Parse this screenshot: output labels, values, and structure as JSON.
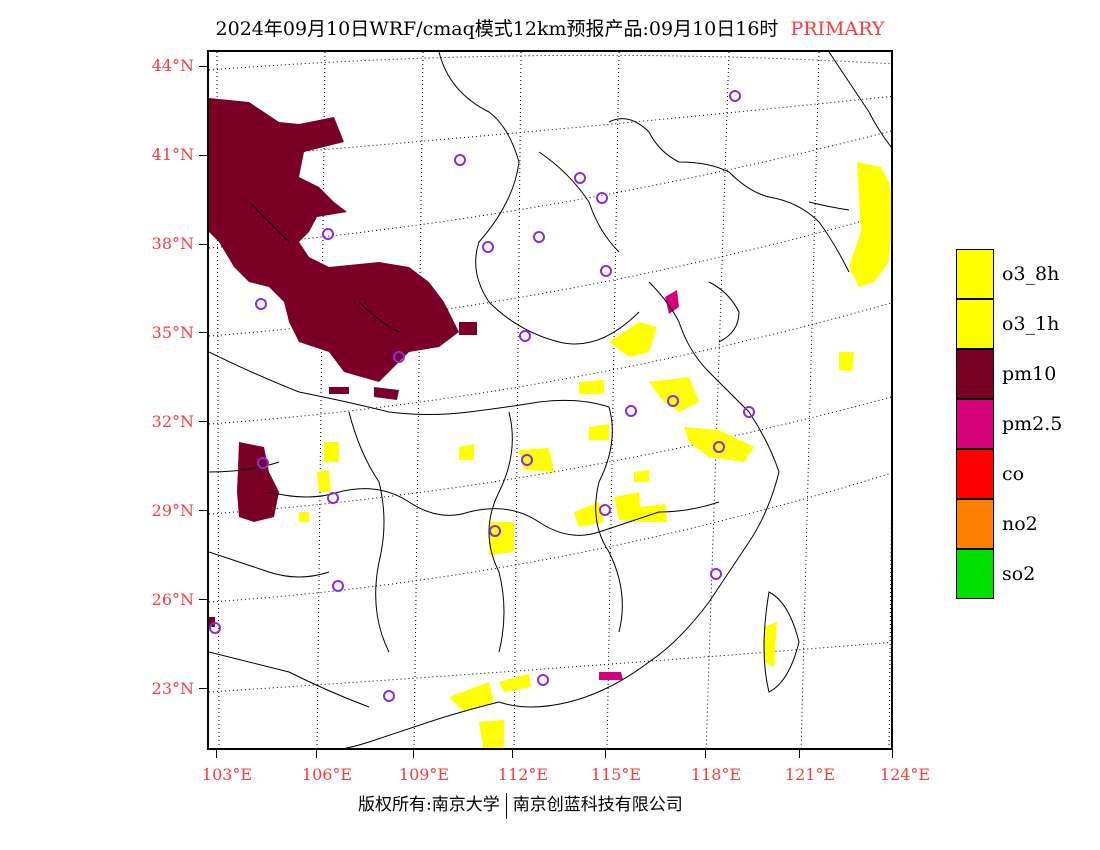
{
  "title": {
    "main": "2024年09月10日WRF/cmaq模式12km预报产品:09月10日16时",
    "tag": "PRIMARY"
  },
  "axes": {
    "lat_labels": [
      "44°N",
      "41°N",
      "38°N",
      "35°N",
      "32°N",
      "29°N",
      "26°N",
      "23°N"
    ],
    "lon_labels": [
      "103°E",
      "106°E",
      "109°E",
      "112°E",
      "115°E",
      "118°E",
      "121°E",
      "124°E"
    ]
  },
  "legend": {
    "items": [
      {
        "label": "o3_8h",
        "color": "#ffff00"
      },
      {
        "label": "o3_1h",
        "color": "#ffff00"
      },
      {
        "label": "pm10",
        "color": "#7a0028"
      },
      {
        "label": "pm2.5",
        "color": "#d4007a"
      },
      {
        "label": "co",
        "color": "#ff0000"
      },
      {
        "label": "no2",
        "color": "#ff7f00"
      },
      {
        "label": "so2",
        "color": "#00e000"
      }
    ]
  },
  "footer": {
    "left": "版权所有:南京大学",
    "right": "南京创蓝科技有限公司"
  },
  "colors": {
    "label_red": "#ff3a3a",
    "station_marker": "#8a2be2"
  }
}
